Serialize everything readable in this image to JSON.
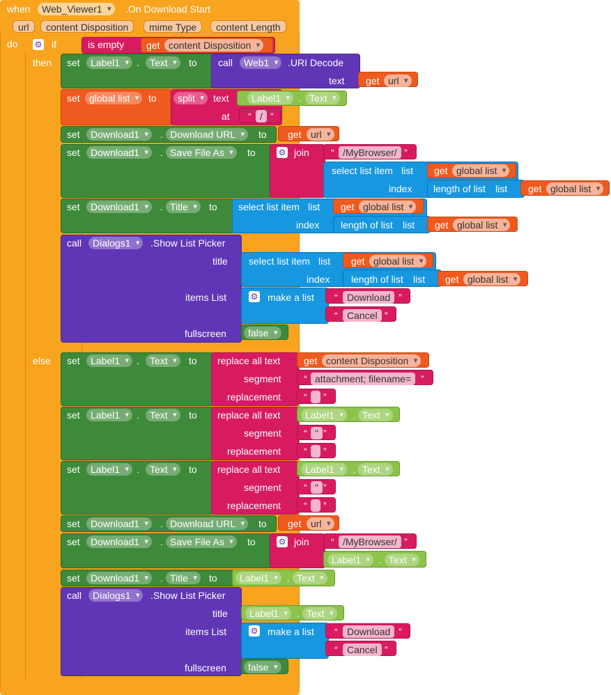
{
  "event": {
    "when": "when",
    "component": "Web_Viewer1",
    "event_name": ".On Download Start",
    "do": "do",
    "params": [
      "url",
      "content Disposition",
      "mime Type",
      "content Length"
    ]
  },
  "kw": {
    "if": "if",
    "then": "then",
    "else": "else",
    "set": "set",
    "to": "to",
    "call": "call",
    "get": "get",
    "dot": ".",
    "is_empty": "is empty",
    "uri_decode": ".URI Decode",
    "text": "text",
    "split": "split",
    "at": "at",
    "join": "join",
    "select_list_item": "select list item",
    "list": "list",
    "index": "index",
    "length_of_list": "length of list",
    "show_list_picker": ".Show List Picker",
    "title": "title",
    "items_list": "items List",
    "fullscreen": "fullscreen",
    "make_a_list": "make a list",
    "replace_all_text": "replace all text",
    "segment": "segment",
    "replacement": "replacement",
    "q_open": "“",
    "q_close": "”"
  },
  "names": {
    "label1": "Label1",
    "web1": "Web1",
    "download1": "Download1",
    "dialogs1": "Dialogs1",
    "global_list": "global list",
    "url": "url",
    "content_disposition": "content Disposition",
    "text_prop": "Text",
    "download_url": "Download URL",
    "save_file_as": "Save File As",
    "title_prop": "Title",
    "false": "false"
  },
  "strings": {
    "slash": "/",
    "my_browser": "/MyBrowser/",
    "download": "Download",
    "cancel": "Cancel",
    "attachment": "attachment; filename=",
    "empty": "",
    "quote": "\""
  },
  "colors": {
    "control": "#f9a41e",
    "setter": "#3d8a3a",
    "variable": "#ef5a1f",
    "call": "#6036b6",
    "text": "#d81b60",
    "list": "#1697e0",
    "component": "#8cc34b"
  }
}
